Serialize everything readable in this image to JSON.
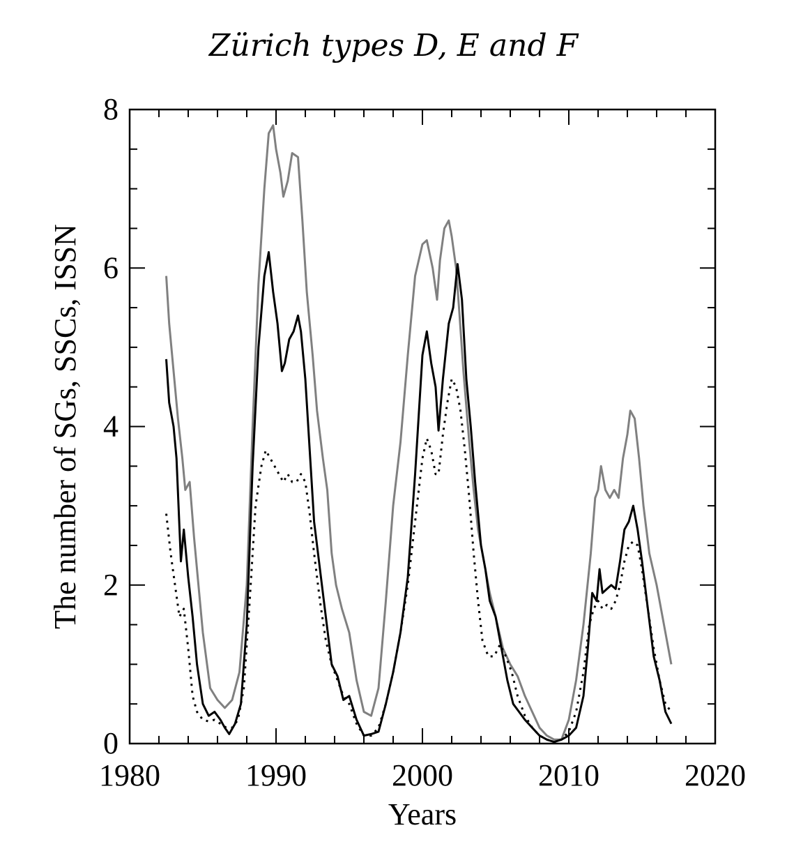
{
  "chart_data": {
    "type": "line",
    "title": "Zürich types D, E and F",
    "xlabel": "Years",
    "ylabel": "The number of SGs, SSCs, ISSN",
    "xlim": [
      1980,
      2020
    ],
    "ylim": [
      0,
      8
    ],
    "xticks": [
      1980,
      1990,
      2000,
      2010,
      2020
    ],
    "yticks": [
      0,
      2,
      4,
      6,
      8
    ],
    "grid": false,
    "series": [
      {
        "color": "#808080",
        "style": "solid",
        "x": [
          1982.5,
          1982.7,
          1983.0,
          1983.3,
          1983.6,
          1983.8,
          1984.1,
          1984.4,
          1984.7,
          1985.0,
          1985.5,
          1986.0,
          1986.5,
          1987.0,
          1987.5,
          1988.0,
          1988.4,
          1988.8,
          1989.2,
          1989.5,
          1989.8,
          1990.0,
          1990.3,
          1990.5,
          1990.8,
          1991.1,
          1991.5,
          1991.8,
          1992.1,
          1992.5,
          1992.8,
          1993.2,
          1993.5,
          1993.8,
          1994.1,
          1994.5,
          1995.0,
          1995.5,
          1996.0,
          1996.5,
          1997.0,
          1997.5,
          1998.0,
          1998.5,
          1999.0,
          1999.5,
          2000.0,
          2000.3,
          2000.7,
          2001.0,
          2001.2,
          2001.5,
          2001.8,
          2002.0,
          2002.3,
          2002.5,
          2002.8,
          2003.2,
          2003.5,
          2003.8,
          2004.2,
          2004.6,
          2005.0,
          2005.5,
          2006.0,
          2006.5,
          2007.0,
          2007.5,
          2008.0,
          2008.5,
          2009.0,
          2009.5,
          2010.0,
          2010.5,
          2011.0,
          2011.5,
          2011.8,
          2012.0,
          2012.2,
          2012.5,
          2012.8,
          2013.1,
          2013.4,
          2013.7,
          2014.0,
          2014.2,
          2014.5,
          2014.8,
          2015.1,
          2015.5,
          2016.0,
          2016.5,
          2017.0
        ],
        "y": [
          5.9,
          5.3,
          4.7,
          4.1,
          3.6,
          3.2,
          3.3,
          2.6,
          2.0,
          1.4,
          0.7,
          0.55,
          0.45,
          0.55,
          0.9,
          2.0,
          4.0,
          5.8,
          7.0,
          7.7,
          7.8,
          7.5,
          7.2,
          6.9,
          7.1,
          7.45,
          7.4,
          6.6,
          5.7,
          4.9,
          4.2,
          3.6,
          3.2,
          2.4,
          2.0,
          1.7,
          1.4,
          0.8,
          0.4,
          0.35,
          0.7,
          1.8,
          3.0,
          3.8,
          4.9,
          5.9,
          6.3,
          6.35,
          6.0,
          5.6,
          6.1,
          6.5,
          6.6,
          6.4,
          6.0,
          5.5,
          4.7,
          3.8,
          3.2,
          2.7,
          2.3,
          1.9,
          1.6,
          1.2,
          1.0,
          0.85,
          0.6,
          0.4,
          0.2,
          0.1,
          0.05,
          0.05,
          0.3,
          0.8,
          1.5,
          2.4,
          3.1,
          3.2,
          3.5,
          3.2,
          3.1,
          3.2,
          3.1,
          3.6,
          3.9,
          4.2,
          4.1,
          3.6,
          3.0,
          2.4,
          2.0,
          1.5,
          1.0
        ]
      },
      {
        "color": "#000000",
        "style": "solid",
        "x": [
          1982.5,
          1982.7,
          1983.0,
          1983.2,
          1983.5,
          1983.7,
          1984.0,
          1984.3,
          1984.6,
          1985.0,
          1985.4,
          1985.8,
          1986.2,
          1986.5,
          1986.8,
          1987.2,
          1987.6,
          1988.0,
          1988.4,
          1988.8,
          1989.2,
          1989.5,
          1989.8,
          1990.1,
          1990.4,
          1990.6,
          1990.9,
          1991.2,
          1991.5,
          1991.7,
          1992.0,
          1992.3,
          1992.6,
          1993.0,
          1993.4,
          1993.8,
          1994.2,
          1994.6,
          1995.0,
          1995.5,
          1996.0,
          1996.5,
          1997.0,
          1997.5,
          1998.0,
          1998.5,
          1999.0,
          1999.5,
          2000.0,
          2000.3,
          2000.6,
          2000.9,
          2001.1,
          2001.4,
          2001.8,
          2002.1,
          2002.4,
          2002.7,
          2003.0,
          2003.3,
          2003.6,
          2004.0,
          2004.3,
          2004.6,
          2005.0,
          2005.4,
          2005.8,
          2006.2,
          2006.6,
          2007.0,
          2007.5,
          2008.0,
          2008.5,
          2009.0,
          2009.5,
          2010.0,
          2010.5,
          2011.0,
          2011.3,
          2011.6,
          2011.9,
          2012.1,
          2012.3,
          2012.6,
          2012.9,
          2013.2,
          2013.5,
          2013.8,
          2014.1,
          2014.4,
          2014.7,
          2015.0,
          2015.4,
          2015.8,
          2016.2,
          2016.6,
          2017.0
        ],
        "y": [
          4.85,
          4.3,
          4.0,
          3.6,
          2.3,
          2.7,
          2.1,
          1.6,
          1.0,
          0.5,
          0.35,
          0.4,
          0.3,
          0.2,
          0.12,
          0.25,
          0.5,
          1.5,
          3.5,
          5.0,
          5.9,
          6.2,
          5.7,
          5.3,
          4.7,
          4.8,
          5.1,
          5.2,
          5.4,
          5.2,
          4.6,
          3.7,
          2.8,
          2.2,
          1.6,
          1.0,
          0.85,
          0.55,
          0.6,
          0.3,
          0.1,
          0.12,
          0.15,
          0.5,
          0.9,
          1.4,
          2.1,
          3.4,
          4.9,
          5.2,
          4.8,
          4.5,
          3.95,
          4.6,
          5.3,
          5.5,
          6.05,
          5.6,
          4.6,
          4.0,
          3.3,
          2.5,
          2.2,
          1.8,
          1.6,
          1.2,
          0.8,
          0.5,
          0.4,
          0.3,
          0.2,
          0.1,
          0.05,
          0.02,
          0.05,
          0.1,
          0.2,
          0.6,
          1.2,
          1.9,
          1.8,
          2.2,
          1.9,
          1.95,
          2.0,
          1.95,
          2.3,
          2.7,
          2.8,
          3.0,
          2.7,
          2.3,
          1.7,
          1.1,
          0.8,
          0.4,
          0.25
        ]
      },
      {
        "color": "#000000",
        "style": "dotted",
        "x": [
          1982.5,
          1982.8,
          1983.1,
          1983.4,
          1983.7,
          1984.0,
          1984.3,
          1984.6,
          1985.0,
          1985.4,
          1985.8,
          1986.2,
          1986.6,
          1987.0,
          1987.4,
          1987.8,
          1988.2,
          1988.6,
          1989.0,
          1989.3,
          1989.6,
          1989.9,
          1990.2,
          1990.5,
          1990.8,
          1991.1,
          1991.4,
          1991.7,
          1992.0,
          1992.3,
          1992.6,
          1993.0,
          1993.4,
          1993.8,
          1994.2,
          1994.6,
          1995.0,
          1995.5,
          1996.0,
          1996.5,
          1997.0,
          1997.5,
          1998.0,
          1998.5,
          1999.0,
          1999.5,
          2000.0,
          2000.3,
          2000.6,
          2000.9,
          2001.1,
          2001.4,
          2001.7,
          2002.0,
          2002.3,
          2002.6,
          2002.9,
          2003.2,
          2003.5,
          2003.8,
          2004.1,
          2004.5,
          2004.9,
          2005.3,
          2005.7,
          2006.1,
          2006.5,
          2007.0,
          2007.5,
          2008.0,
          2008.5,
          2009.0,
          2009.5,
          2010.0,
          2010.5,
          2011.0,
          2011.4,
          2011.7,
          2012.0,
          2012.3,
          2012.6,
          2012.9,
          2013.2,
          2013.5,
          2013.8,
          2014.1,
          2014.4,
          2014.7,
          2015.0,
          2015.4,
          2015.8,
          2016.2,
          2016.6,
          2017.0
        ],
        "y": [
          2.9,
          2.4,
          2.0,
          1.6,
          1.7,
          1.2,
          0.6,
          0.4,
          0.3,
          0.28,
          0.3,
          0.25,
          0.2,
          0.2,
          0.3,
          0.7,
          1.8,
          3.0,
          3.5,
          3.7,
          3.6,
          3.5,
          3.4,
          3.3,
          3.4,
          3.3,
          3.3,
          3.4,
          3.3,
          2.9,
          2.4,
          1.8,
          1.3,
          1.0,
          0.8,
          0.6,
          0.5,
          0.25,
          0.1,
          0.1,
          0.2,
          0.5,
          0.9,
          1.4,
          2.0,
          2.8,
          3.6,
          3.85,
          3.7,
          3.4,
          3.4,
          3.9,
          4.3,
          4.6,
          4.5,
          4.2,
          3.7,
          3.1,
          2.4,
          1.8,
          1.3,
          1.1,
          1.1,
          1.25,
          1.1,
          0.9,
          0.6,
          0.35,
          0.2,
          0.1,
          0.05,
          0.02,
          0.05,
          0.15,
          0.4,
          0.9,
          1.5,
          1.7,
          1.8,
          1.7,
          1.75,
          1.7,
          1.8,
          2.0,
          2.3,
          2.5,
          2.55,
          2.5,
          2.2,
          1.7,
          1.2,
          0.8,
          0.5,
          0.4
        ]
      }
    ]
  }
}
